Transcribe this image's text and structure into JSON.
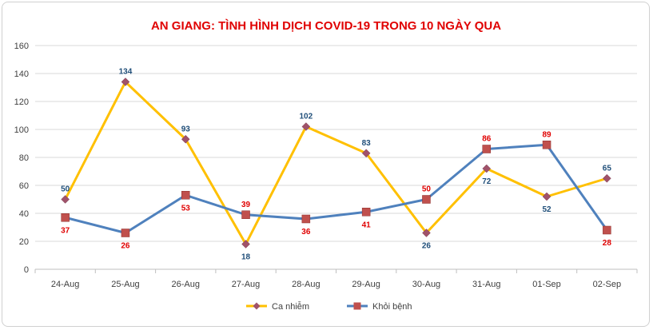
{
  "chart_data": {
    "type": "line",
    "title": "AN GIANG: TÌNH HÌNH DỊCH COVID-19 TRONG 10 NGÀY QUA",
    "categories": [
      "24-Aug",
      "25-Aug",
      "26-Aug",
      "27-Aug",
      "28-Aug",
      "29-Aug",
      "30-Aug",
      "31-Aug",
      "01-Sep",
      "02-Sep"
    ],
    "yticks": [
      "0",
      "20",
      "40",
      "60",
      "80",
      "100",
      "120",
      "140",
      "160"
    ],
    "ylim": [
      0,
      160
    ],
    "grid": true,
    "legend_position": "bottom",
    "series": [
      {
        "name": "Ca nhiễm",
        "values": [
          50,
          134,
          93,
          18,
          102,
          83,
          26,
          72,
          52,
          65
        ],
        "line_color": "#FFC000",
        "marker_color": "#A0526A",
        "label_color": "#1F4E79",
        "marker": "diamond"
      },
      {
        "name": "Khỏi bệnh",
        "values": [
          37,
          26,
          53,
          39,
          36,
          41,
          50,
          86,
          89,
          28
        ],
        "line_color": "#4F81BD",
        "marker_color": "#C0504D",
        "label_color": "#E00000",
        "marker": "square"
      }
    ]
  },
  "colors": {
    "title": "#E00000",
    "grid": "#d9d9d9",
    "axis": "#bfbfbf"
  }
}
